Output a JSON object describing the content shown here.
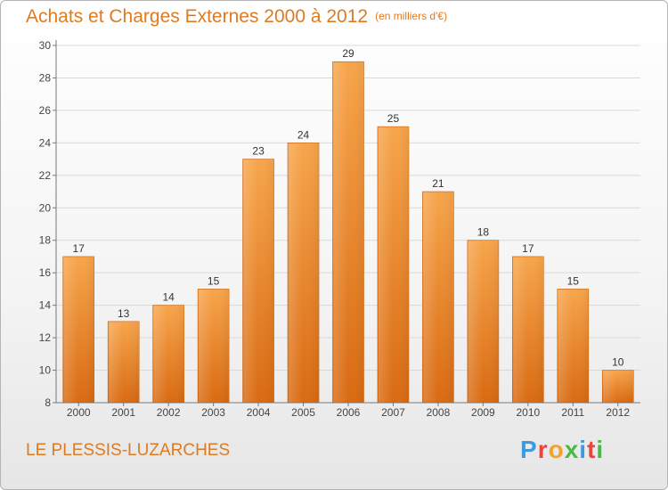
{
  "header": {
    "title": "Achats et Charges Externes 2000 à 2012",
    "unit_note": "(en milliers d'€)"
  },
  "footer": {
    "town": "LE PLESSIS-LUZARCHES",
    "logo_text": "Proxiti",
    "logo_colors": [
      "#3c9be0",
      "#e8453c",
      "#f3a32a",
      "#4cb848",
      "#3c9be0",
      "#e8453c",
      "#4cb848"
    ]
  },
  "colors": {
    "bar_light": "#f7a54b",
    "bar_dark": "#d96a12",
    "text_orange": "#e07a1f",
    "grid": "#d9d9d9"
  },
  "chart_data": {
    "type": "bar",
    "title": "Achats et Charges Externes 2000 à 2012",
    "subtitle": "(en milliers d'€)",
    "categories": [
      "2000",
      "2001",
      "2002",
      "2003",
      "2004",
      "2005",
      "2006",
      "2007",
      "2008",
      "2009",
      "2010",
      "2011",
      "2012"
    ],
    "values": [
      17,
      13,
      14,
      15,
      23,
      24,
      29,
      25,
      21,
      18,
      17,
      15,
      10
    ],
    "ylim": [
      8,
      30
    ],
    "yticks": [
      8,
      10,
      12,
      14,
      16,
      18,
      20,
      22,
      24,
      26,
      28,
      30
    ],
    "grid": true
  }
}
